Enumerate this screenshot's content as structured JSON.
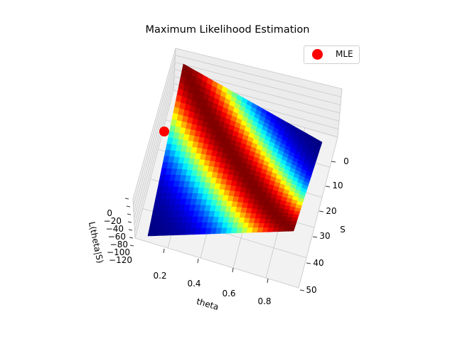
{
  "chart_data": {
    "type": "surface",
    "title": "Maximum Likelihood Estimation",
    "xlabel": "theta",
    "ylabel": "S",
    "zlabel": "L(theta|S)",
    "xticks": [
      "0.2",
      "0.4",
      "0.6",
      "0.8"
    ],
    "yticks": [
      "0",
      "10",
      "20",
      "30",
      "40",
      "50"
    ],
    "zticks": [
      "0",
      "−20",
      "−40",
      "−60",
      "−80",
      "−100",
      "−120"
    ],
    "xlim": [
      0.1,
      0.9
    ],
    "ylim": [
      0,
      50
    ],
    "zlim": [
      -120,
      0
    ],
    "colormap": "jet",
    "legend": {
      "position": "top-right",
      "entries": [
        {
          "label": "MLE",
          "color": "#ff0000"
        }
      ]
    },
    "mle_point": {
      "theta": 0.1,
      "S": 5,
      "L": -15
    }
  }
}
